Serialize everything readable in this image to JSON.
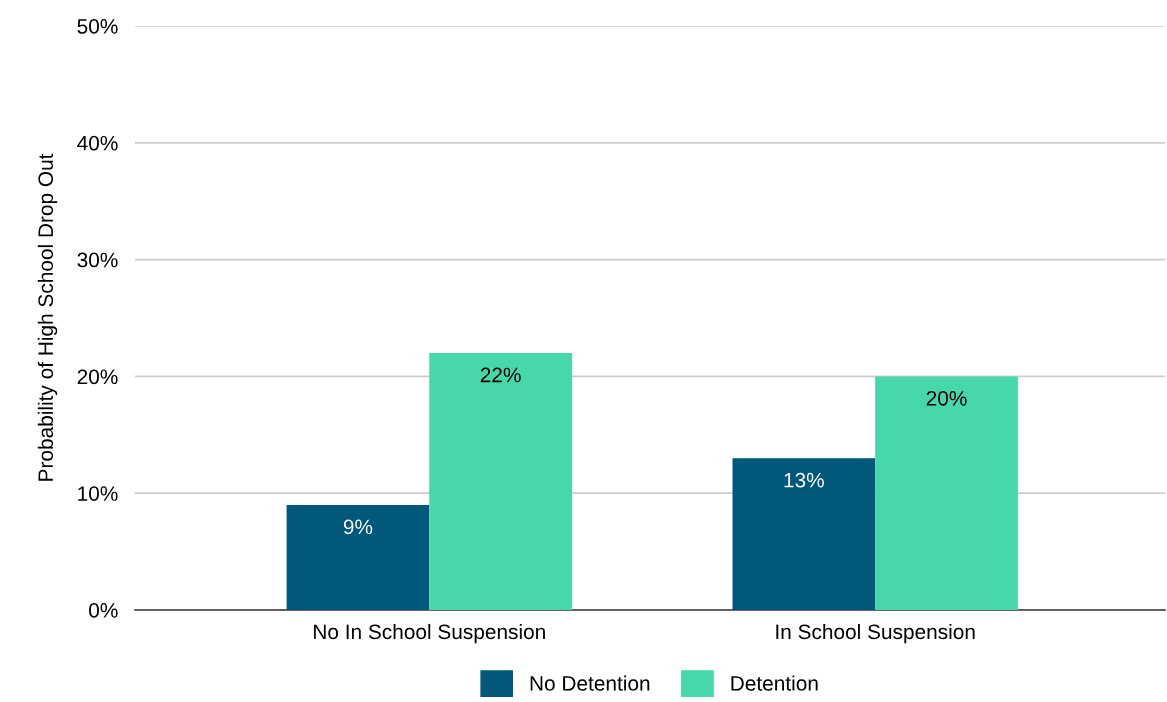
{
  "chart_data": {
    "type": "bar",
    "ylabel": "Probability of High School Drop Out",
    "categories": [
      "No In School Suspension",
      "In School Suspension"
    ],
    "series": [
      {
        "name": "No Detention",
        "color": "#02587a",
        "values": [
          9,
          13
        ],
        "value_labels": [
          "9%",
          "13%"
        ]
      },
      {
        "name": "Detention",
        "color": "#46d8ab",
        "values": [
          22,
          20
        ],
        "value_labels": [
          "22%",
          "20%"
        ]
      }
    ],
    "ylim": [
      0,
      50
    ],
    "yticks": [
      {
        "value": 0,
        "label": "0%"
      },
      {
        "value": 10,
        "label": "10%"
      },
      {
        "value": 20,
        "label": "20%"
      },
      {
        "value": 30,
        "label": "30%"
      },
      {
        "value": 40,
        "label": "40%"
      },
      {
        "value": 50,
        "label": "50%"
      }
    ],
    "grid": "y",
    "legend": "bottom"
  }
}
